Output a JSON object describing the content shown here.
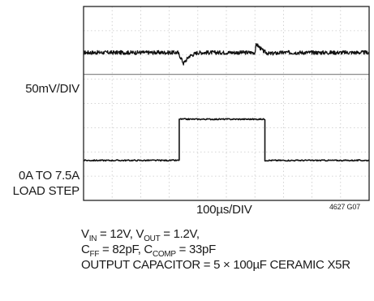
{
  "chart_data": {
    "type": "line",
    "title": "",
    "figure_id": "4627 G07",
    "x_scale": "100µs/DIV",
    "x_divisions": 10,
    "y_divisions": 8,
    "grid": true,
    "channels": [
      {
        "label": "50mV/DIV",
        "units": "div",
        "baseline_div": 6.1,
        "x": [
          0,
          3.3,
          3.4,
          3.5,
          3.7,
          4.0,
          4.5,
          5.0,
          6.0,
          6.05,
          6.3,
          6.5,
          7.0,
          8.0,
          10.0
        ],
        "y": [
          6.1,
          6.1,
          5.9,
          5.65,
          5.95,
          6.1,
          6.1,
          6.1,
          6.1,
          6.45,
          6.15,
          6.05,
          6.1,
          6.1,
          6.1
        ]
      },
      {
        "label_lines": [
          "0A TO 7.5A",
          "LOAD STEP"
        ],
        "units": "div",
        "low_level_div": 1.65,
        "high_level_div": 3.35,
        "step_up_at_div": 3.35,
        "step_down_at_div": 6.35,
        "x": [
          0,
          3.35,
          3.35,
          6.35,
          6.35,
          10.0
        ],
        "y": [
          1.65,
          1.65,
          3.35,
          3.35,
          1.65,
          1.65
        ]
      }
    ]
  },
  "conditions": {
    "line1": [
      "V",
      "IN",
      " = 12V, V",
      "OUT",
      " = 1.2V,"
    ],
    "line2": [
      "C",
      "FF",
      " = 82pF, C",
      "COMP",
      " = 33pF"
    ],
    "line3": "OUTPUT CAPACITOR = 5 × 100µF CERAMIC X5R"
  },
  "colors": {
    "trace": "#111111",
    "grid": "#c8c8c8",
    "frame": "#222222",
    "reference": "#8a8a8a"
  }
}
